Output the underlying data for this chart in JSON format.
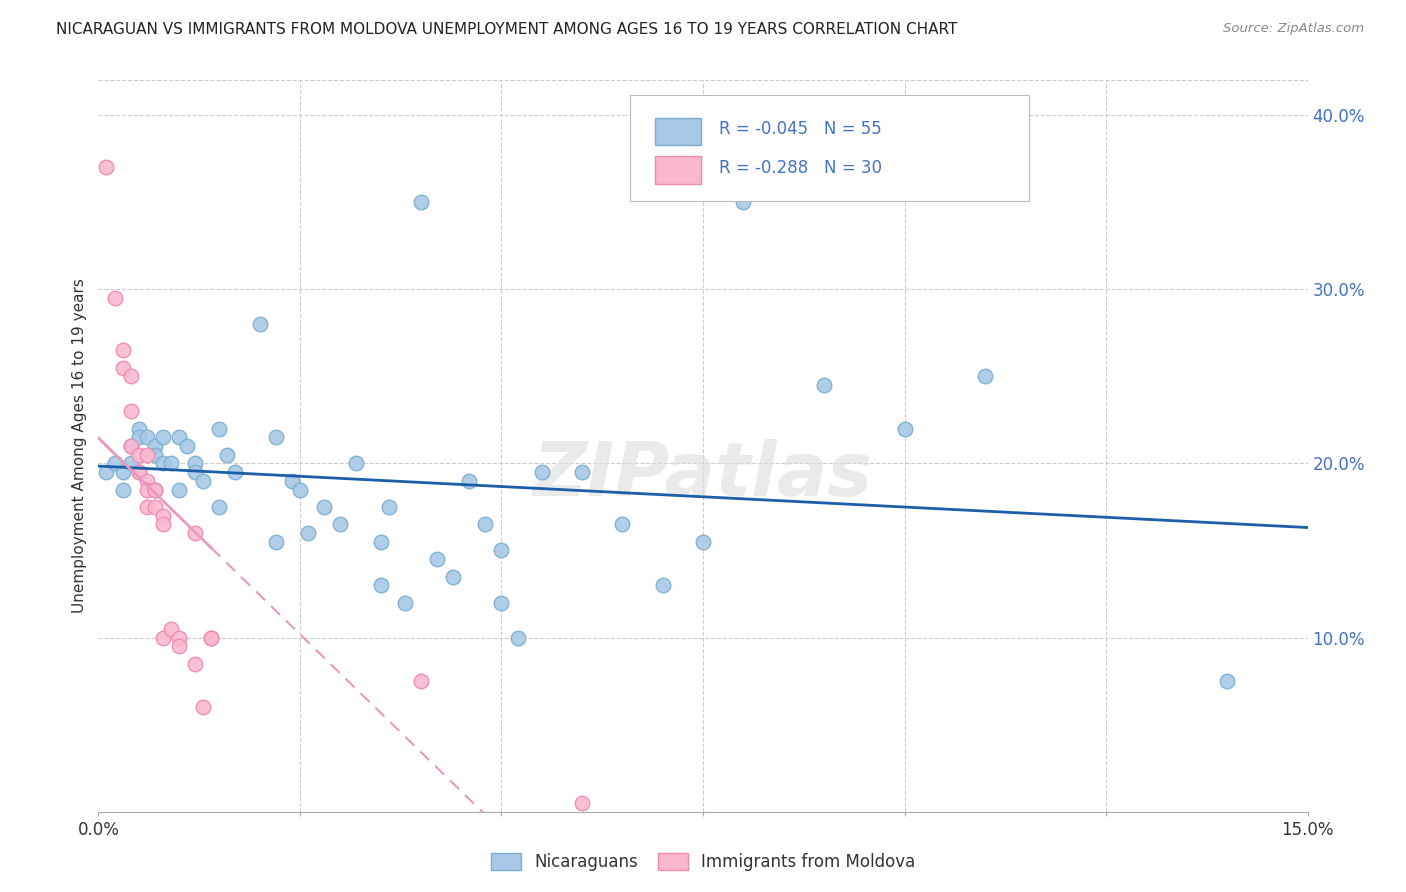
{
  "title": "NICARAGUAN VS IMMIGRANTS FROM MOLDOVA UNEMPLOYMENT AMONG AGES 16 TO 19 YEARS CORRELATION CHART",
  "source": "Source: ZipAtlas.com",
  "ylabel": "Unemployment Among Ages 16 to 19 years",
  "xmin": 0.0,
  "xmax": 0.15,
  "ymin": 0.0,
  "ymax": 0.42,
  "y_ticks_right": [
    0.1,
    0.2,
    0.3,
    0.4
  ],
  "y_tick_labels_right": [
    "10.0%",
    "20.0%",
    "30.0%",
    "40.0%"
  ],
  "legend_blue_label": "Nicaraguans",
  "legend_pink_label": "Immigrants from Moldova",
  "R_blue": -0.045,
  "N_blue": 55,
  "R_pink": -0.288,
  "N_pink": 30,
  "watermark": "ZIPatlas",
  "blue_scatter_color": "#a8c8e8",
  "blue_edge_color": "#7aaed0",
  "pink_scatter_color": "#f9b8d0",
  "pink_edge_color": "#f088b0",
  "blue_line_color": "#1a5fa8",
  "pink_line_color": "#e898c0",
  "legend_text_color": "#4472c4",
  "blue_scatter": [
    [
      0.001,
      0.195
    ],
    [
      0.002,
      0.2
    ],
    [
      0.003,
      0.195
    ],
    [
      0.003,
      0.185
    ],
    [
      0.004,
      0.21
    ],
    [
      0.004,
      0.2
    ],
    [
      0.005,
      0.22
    ],
    [
      0.005,
      0.215
    ],
    [
      0.006,
      0.215
    ],
    [
      0.007,
      0.21
    ],
    [
      0.007,
      0.205
    ],
    [
      0.008,
      0.2
    ],
    [
      0.008,
      0.215
    ],
    [
      0.009,
      0.2
    ],
    [
      0.01,
      0.215
    ],
    [
      0.01,
      0.185
    ],
    [
      0.011,
      0.21
    ],
    [
      0.012,
      0.2
    ],
    [
      0.012,
      0.195
    ],
    [
      0.013,
      0.19
    ],
    [
      0.015,
      0.22
    ],
    [
      0.015,
      0.175
    ],
    [
      0.016,
      0.205
    ],
    [
      0.017,
      0.195
    ],
    [
      0.02,
      0.28
    ],
    [
      0.022,
      0.215
    ],
    [
      0.022,
      0.155
    ],
    [
      0.024,
      0.19
    ],
    [
      0.025,
      0.185
    ],
    [
      0.026,
      0.16
    ],
    [
      0.028,
      0.175
    ],
    [
      0.03,
      0.165
    ],
    [
      0.032,
      0.2
    ],
    [
      0.035,
      0.155
    ],
    [
      0.035,
      0.13
    ],
    [
      0.036,
      0.175
    ],
    [
      0.038,
      0.12
    ],
    [
      0.04,
      0.35
    ],
    [
      0.042,
      0.145
    ],
    [
      0.044,
      0.135
    ],
    [
      0.046,
      0.19
    ],
    [
      0.048,
      0.165
    ],
    [
      0.05,
      0.15
    ],
    [
      0.05,
      0.12
    ],
    [
      0.052,
      0.1
    ],
    [
      0.055,
      0.195
    ],
    [
      0.06,
      0.195
    ],
    [
      0.065,
      0.165
    ],
    [
      0.07,
      0.13
    ],
    [
      0.075,
      0.155
    ],
    [
      0.08,
      0.35
    ],
    [
      0.09,
      0.245
    ],
    [
      0.1,
      0.22
    ],
    [
      0.11,
      0.25
    ],
    [
      0.14,
      0.075
    ]
  ],
  "pink_scatter": [
    [
      0.001,
      0.37
    ],
    [
      0.002,
      0.295
    ],
    [
      0.003,
      0.265
    ],
    [
      0.003,
      0.255
    ],
    [
      0.004,
      0.25
    ],
    [
      0.004,
      0.23
    ],
    [
      0.004,
      0.21
    ],
    [
      0.005,
      0.205
    ],
    [
      0.005,
      0.195
    ],
    [
      0.005,
      0.195
    ],
    [
      0.006,
      0.205
    ],
    [
      0.006,
      0.19
    ],
    [
      0.006,
      0.185
    ],
    [
      0.006,
      0.175
    ],
    [
      0.007,
      0.185
    ],
    [
      0.007,
      0.185
    ],
    [
      0.007,
      0.175
    ],
    [
      0.008,
      0.17
    ],
    [
      0.008,
      0.165
    ],
    [
      0.008,
      0.1
    ],
    [
      0.009,
      0.105
    ],
    [
      0.01,
      0.1
    ],
    [
      0.01,
      0.095
    ],
    [
      0.012,
      0.16
    ],
    [
      0.012,
      0.085
    ],
    [
      0.013,
      0.06
    ],
    [
      0.014,
      0.1
    ],
    [
      0.014,
      0.1
    ],
    [
      0.04,
      0.075
    ],
    [
      0.06,
      0.005
    ]
  ]
}
